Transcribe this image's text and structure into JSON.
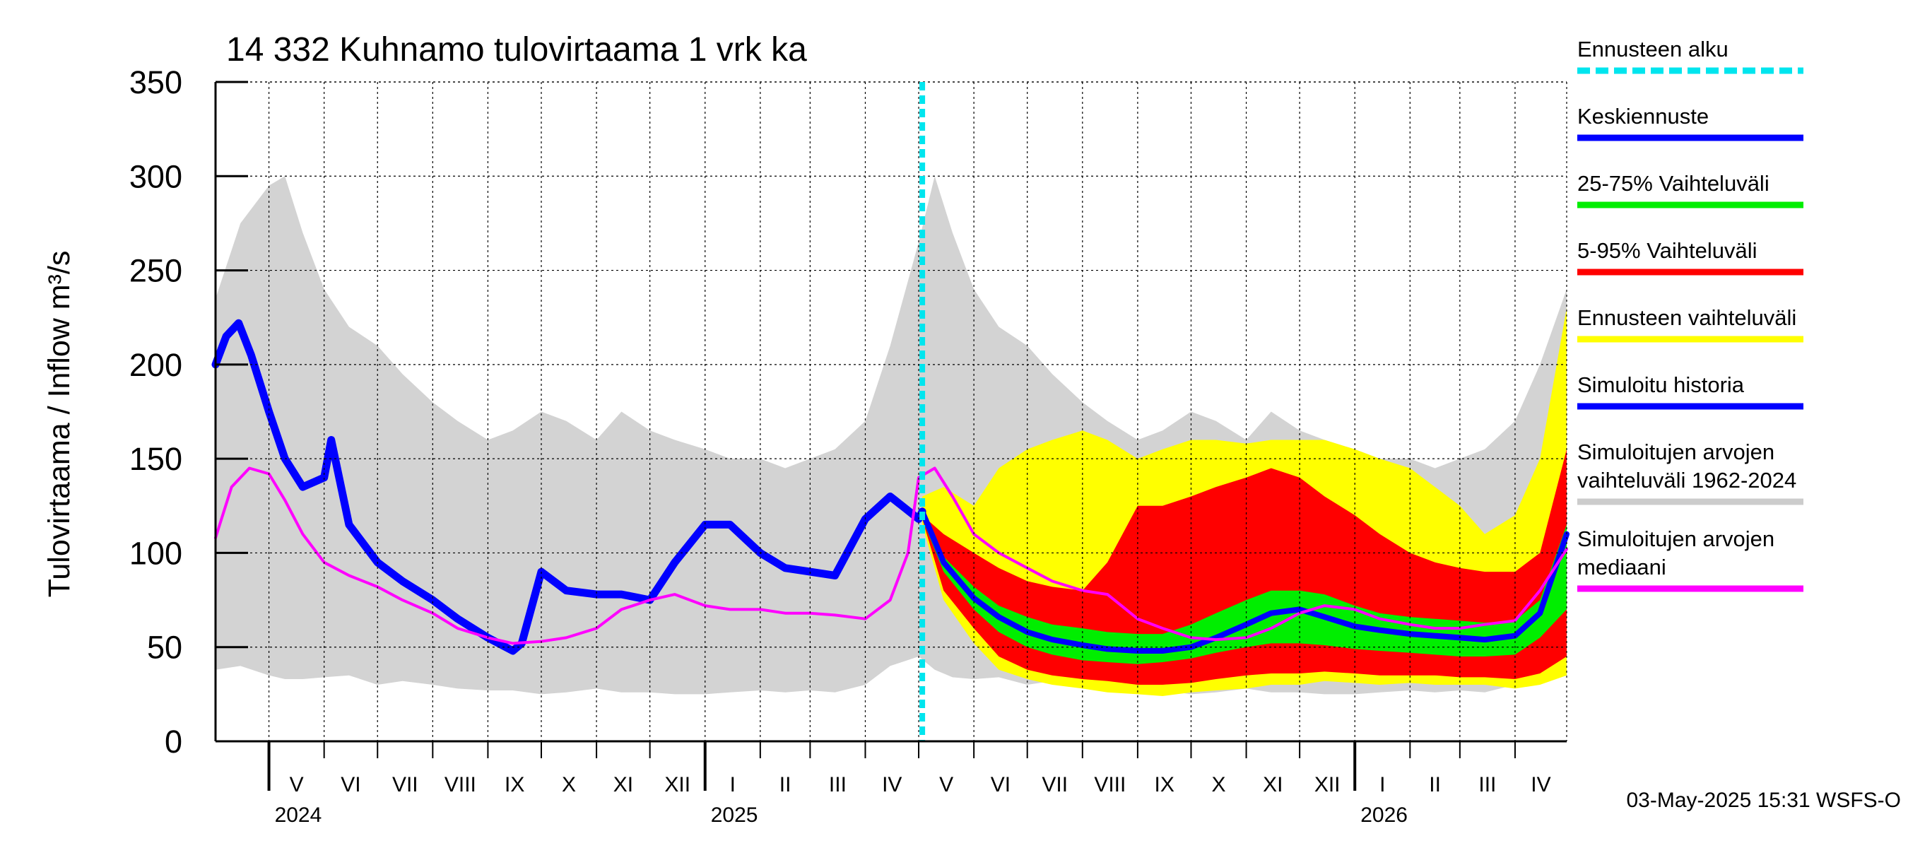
{
  "chart_data": {
    "type": "area",
    "title": "14 332 Kuhnamo tulovirtaama 1 vrk ka",
    "ylabel": "Tulovirtaama / Inflow    m³/s",
    "ylim": [
      0,
      350
    ],
    "yticks": [
      0,
      50,
      100,
      150,
      200,
      250,
      300,
      350
    ],
    "xlim": [
      "2024-04-01",
      "2026-04-30"
    ],
    "grid": true,
    "legend_position": "right",
    "forecast_start": "2025-05-03",
    "footer": "03-May-2025 15:31 WSFS-O",
    "months": [
      {
        "label": "V",
        "start": "2024-05-01"
      },
      {
        "label": "VI",
        "start": "2024-06-01"
      },
      {
        "label": "VII",
        "start": "2024-07-01"
      },
      {
        "label": "VIII",
        "start": "2024-08-01"
      },
      {
        "label": "IX",
        "start": "2024-09-01"
      },
      {
        "label": "X",
        "start": "2024-10-01"
      },
      {
        "label": "XI",
        "start": "2024-11-01"
      },
      {
        "label": "XII",
        "start": "2024-12-01"
      },
      {
        "label": "I",
        "start": "2025-01-01"
      },
      {
        "label": "II",
        "start": "2025-02-01"
      },
      {
        "label": "III",
        "start": "2025-03-01"
      },
      {
        "label": "IV",
        "start": "2025-04-01"
      },
      {
        "label": "V",
        "start": "2025-05-01"
      },
      {
        "label": "VI",
        "start": "2025-06-01"
      },
      {
        "label": "VII",
        "start": "2025-07-01"
      },
      {
        "label": "VIII",
        "start": "2025-08-01"
      },
      {
        "label": "IX",
        "start": "2025-09-01"
      },
      {
        "label": "X",
        "start": "2025-10-01"
      },
      {
        "label": "XI",
        "start": "2025-11-01"
      },
      {
        "label": "XII",
        "start": "2025-12-01"
      },
      {
        "label": "I",
        "start": "2026-01-01"
      },
      {
        "label": "II",
        "start": "2026-02-01"
      },
      {
        "label": "III",
        "start": "2026-03-01"
      },
      {
        "label": "IV",
        "start": "2026-04-01"
      }
    ],
    "years": [
      {
        "label": "2024",
        "start": "2024-05-01"
      },
      {
        "label": "2025",
        "start": "2025-01-01"
      },
      {
        "label": "2026",
        "start": "2026-01-01"
      }
    ],
    "legend": [
      {
        "label": "Ennusteen alku",
        "color": "#00e5ee",
        "style": "dashed"
      },
      {
        "label": "Keskiennuste",
        "color": "#0000ff"
      },
      {
        "label": "25-75% Vaihteluväli",
        "color": "#00ee00"
      },
      {
        "label": "5-95% Vaihteluväli",
        "color": "#ff0000"
      },
      {
        "label": "Ennusteen vaihteluväli",
        "color": "#ffff00"
      },
      {
        "label": "Simuloitu historia",
        "color": "#0000ff"
      },
      {
        "label": "Simuloitujen arvojen vaihteluväli 1962-2024",
        "lines": [
          "Simuloitujen arvojen",
          "vaihteluväli 1962-2024"
        ],
        "color": "#cccccc"
      },
      {
        "label": "Simuloitujen arvojen mediaani",
        "lines": [
          "Simuloitujen arvojen",
          "mediaani"
        ],
        "color": "#ff00ff"
      }
    ],
    "series": [
      {
        "name": "Simuloitujen arvojen vaihteluväli 1962-2024",
        "color": "#d3d3d3",
        "x": [
          "2024-04-01",
          "2024-04-15",
          "2024-05-01",
          "2024-05-10",
          "2024-05-20",
          "2024-06-01",
          "2024-06-15",
          "2024-07-01",
          "2024-07-15",
          "2024-08-01",
          "2024-08-15",
          "2024-09-01",
          "2024-09-15",
          "2024-10-01",
          "2024-10-15",
          "2024-11-01",
          "2024-11-15",
          "2024-12-01",
          "2024-12-15",
          "2025-01-01",
          "2025-01-15",
          "2025-02-01",
          "2025-02-15",
          "2025-03-01",
          "2025-03-15",
          "2025-04-01",
          "2025-04-15",
          "2025-05-01",
          "2025-05-10",
          "2025-05-20",
          "2025-06-01",
          "2025-06-15",
          "2025-07-01",
          "2025-07-15",
          "2025-08-01",
          "2025-08-15",
          "2025-09-01",
          "2025-09-15",
          "2025-10-01",
          "2025-10-15",
          "2025-11-01",
          "2025-11-15",
          "2025-12-01",
          "2025-12-15",
          "2026-01-01",
          "2026-01-15",
          "2026-02-01",
          "2026-02-15",
          "2026-03-01",
          "2026-03-15",
          "2026-04-01",
          "2026-04-15",
          "2026-04-30"
        ],
        "low": [
          38,
          40,
          35,
          33,
          33,
          34,
          35,
          30,
          32,
          30,
          28,
          27,
          27,
          25,
          26,
          28,
          26,
          26,
          25,
          25,
          26,
          27,
          26,
          27,
          26,
          30,
          40,
          45,
          38,
          34,
          33,
          34,
          30,
          32,
          30,
          28,
          27,
          27,
          25,
          26,
          28,
          26,
          26,
          25,
          25,
          26,
          27,
          26,
          27,
          26,
          30,
          40,
          45
        ],
        "high": [
          235,
          275,
          295,
          300,
          270,
          240,
          220,
          210,
          195,
          180,
          170,
          160,
          165,
          175,
          170,
          160,
          175,
          165,
          160,
          155,
          150,
          150,
          145,
          150,
          155,
          170,
          210,
          265,
          300,
          270,
          240,
          220,
          210,
          195,
          180,
          170,
          160,
          165,
          175,
          170,
          160,
          175,
          165,
          160,
          155,
          150,
          150,
          145,
          150,
          155,
          170,
          200,
          240
        ]
      },
      {
        "name": "Ennusteen vaihteluväli",
        "color": "#ffff00",
        "x": [
          "2025-05-03",
          "2025-05-15",
          "2025-06-01",
          "2025-06-15",
          "2025-07-01",
          "2025-07-15",
          "2025-08-01",
          "2025-08-15",
          "2025-09-01",
          "2025-09-15",
          "2025-10-01",
          "2025-10-15",
          "2025-11-01",
          "2025-11-15",
          "2025-12-01",
          "2025-12-15",
          "2026-01-01",
          "2026-01-15",
          "2026-02-01",
          "2026-02-15",
          "2026-03-01",
          "2026-03-15",
          "2026-04-01",
          "2026-04-15",
          "2026-04-30"
        ],
        "low": [
          115,
          75,
          52,
          38,
          33,
          30,
          28,
          26,
          25,
          24,
          26,
          27,
          28,
          30,
          30,
          32,
          31,
          30,
          31,
          30,
          30,
          30,
          28,
          30,
          35
        ],
        "high": [
          130,
          135,
          125,
          145,
          155,
          160,
          165,
          160,
          150,
          155,
          160,
          160,
          158,
          160,
          160,
          160,
          155,
          150,
          145,
          135,
          125,
          110,
          120,
          150,
          230
        ]
      },
      {
        "name": "5-95% Vaihteluväli",
        "color": "#ff0000",
        "x": [
          "2025-05-03",
          "2025-05-15",
          "2025-06-01",
          "2025-06-15",
          "2025-07-01",
          "2025-07-15",
          "2025-08-01",
          "2025-08-15",
          "2025-09-01",
          "2025-09-15",
          "2025-10-01",
          "2025-10-15",
          "2025-11-01",
          "2025-11-15",
          "2025-12-01",
          "2025-12-15",
          "2026-01-01",
          "2026-01-15",
          "2026-02-01",
          "2026-02-15",
          "2026-03-01",
          "2026-03-15",
          "2026-04-01",
          "2026-04-15",
          "2026-04-30"
        ],
        "low": [
          118,
          80,
          60,
          45,
          38,
          35,
          33,
          32,
          30,
          30,
          31,
          33,
          35,
          36,
          36,
          37,
          36,
          35,
          35,
          35,
          34,
          34,
          33,
          36,
          45
        ],
        "high": [
          120,
          110,
          100,
          92,
          85,
          82,
          80,
          95,
          125,
          125,
          130,
          135,
          140,
          145,
          140,
          130,
          120,
          110,
          100,
          95,
          92,
          90,
          90,
          100,
          155
        ]
      },
      {
        "name": "25-75% Vaihteluväli",
        "color": "#00ee00",
        "x": [
          "2025-05-03",
          "2025-05-15",
          "2025-06-01",
          "2025-06-15",
          "2025-07-01",
          "2025-07-15",
          "2025-08-01",
          "2025-08-15",
          "2025-09-01",
          "2025-09-15",
          "2025-10-01",
          "2025-10-15",
          "2025-11-01",
          "2025-11-15",
          "2025-12-01",
          "2025-12-15",
          "2026-01-01",
          "2026-01-15",
          "2026-02-01",
          "2026-02-15",
          "2026-03-01",
          "2026-03-15",
          "2026-04-01",
          "2026-04-15",
          "2026-04-30"
        ],
        "low": [
          118,
          90,
          70,
          58,
          50,
          46,
          43,
          42,
          41,
          42,
          44,
          47,
          50,
          52,
          52,
          51,
          49,
          48,
          47,
          46,
          45,
          45,
          46,
          55,
          70
        ],
        "high": [
          120,
          98,
          82,
          72,
          66,
          62,
          60,
          58,
          57,
          57,
          62,
          68,
          75,
          80,
          80,
          78,
          72,
          68,
          66,
          65,
          64,
          63,
          64,
          75,
          115
        ]
      },
      {
        "name": "Keskiennuste",
        "color": "#0000ff",
        "x": [
          "2025-05-03",
          "2025-05-15",
          "2025-06-01",
          "2025-06-15",
          "2025-07-01",
          "2025-07-15",
          "2025-08-01",
          "2025-08-15",
          "2025-09-01",
          "2025-09-15",
          "2025-10-01",
          "2025-10-15",
          "2025-11-01",
          "2025-11-15",
          "2025-12-01",
          "2025-12-15",
          "2026-01-01",
          "2026-01-15",
          "2026-02-01",
          "2026-02-15",
          "2026-03-01",
          "2026-03-15",
          "2026-04-01",
          "2026-04-15",
          "2026-04-30"
        ],
        "values": [
          122,
          95,
          76,
          66,
          58,
          54,
          51,
          49,
          48,
          48,
          50,
          55,
          62,
          68,
          70,
          66,
          61,
          59,
          57,
          56,
          55,
          54,
          56,
          68,
          110
        ]
      },
      {
        "name": "Simuloitu historia",
        "color": "#0000ff",
        "x": [
          "2024-04-01",
          "2024-04-07",
          "2024-04-14",
          "2024-04-21",
          "2024-05-01",
          "2024-05-10",
          "2024-05-20",
          "2024-06-01",
          "2024-06-05",
          "2024-06-15",
          "2024-07-01",
          "2024-07-15",
          "2024-08-01",
          "2024-08-15",
          "2024-09-01",
          "2024-09-15",
          "2024-09-20",
          "2024-10-01",
          "2024-10-15",
          "2024-11-01",
          "2024-11-15",
          "2024-12-01",
          "2024-12-15",
          "2025-01-01",
          "2025-01-15",
          "2025-02-01",
          "2025-02-15",
          "2025-03-01",
          "2025-03-15",
          "2025-04-01",
          "2025-04-15",
          "2025-05-01",
          "2025-05-03"
        ],
        "values": [
          200,
          215,
          222,
          205,
          175,
          150,
          135,
          140,
          160,
          115,
          95,
          85,
          75,
          65,
          55,
          48,
          52,
          90,
          80,
          78,
          78,
          75,
          95,
          115,
          115,
          100,
          92,
          90,
          88,
          118,
          130,
          118,
          122
        ]
      },
      {
        "name": "Simuloitujen arvojen mediaani",
        "color": "#ff00ff",
        "x": [
          "2024-04-01",
          "2024-04-10",
          "2024-04-20",
          "2024-05-01",
          "2024-05-10",
          "2024-05-20",
          "2024-06-01",
          "2024-06-15",
          "2024-07-01",
          "2024-07-15",
          "2024-08-01",
          "2024-08-15",
          "2024-09-01",
          "2024-09-15",
          "2024-10-01",
          "2024-10-15",
          "2024-11-01",
          "2024-11-15",
          "2024-12-01",
          "2024-12-15",
          "2025-01-01",
          "2025-01-15",
          "2025-02-01",
          "2025-02-15",
          "2025-03-01",
          "2025-03-15",
          "2025-04-01",
          "2025-04-15",
          "2025-04-25",
          "2025-05-01",
          "2025-05-10",
          "2025-05-20",
          "2025-06-01",
          "2025-06-15",
          "2025-07-01",
          "2025-07-15",
          "2025-08-01",
          "2025-08-15",
          "2025-09-01",
          "2025-09-15",
          "2025-10-01",
          "2025-10-15",
          "2025-11-01",
          "2025-11-15",
          "2025-12-01",
          "2025-12-15",
          "2026-01-01",
          "2026-01-15",
          "2026-02-01",
          "2026-02-15",
          "2026-03-01",
          "2026-03-15",
          "2026-04-01",
          "2026-04-15",
          "2026-04-30"
        ],
        "values": [
          108,
          135,
          145,
          142,
          128,
          110,
          95,
          88,
          82,
          75,
          68,
          60,
          55,
          52,
          53,
          55,
          60,
          70,
          75,
          78,
          72,
          70,
          70,
          68,
          68,
          67,
          65,
          75,
          100,
          140,
          145,
          130,
          110,
          100,
          92,
          85,
          80,
          78,
          65,
          60,
          55,
          54,
          55,
          60,
          68,
          72,
          70,
          65,
          62,
          60,
          60,
          62,
          64,
          80,
          102
        ]
      }
    ]
  }
}
